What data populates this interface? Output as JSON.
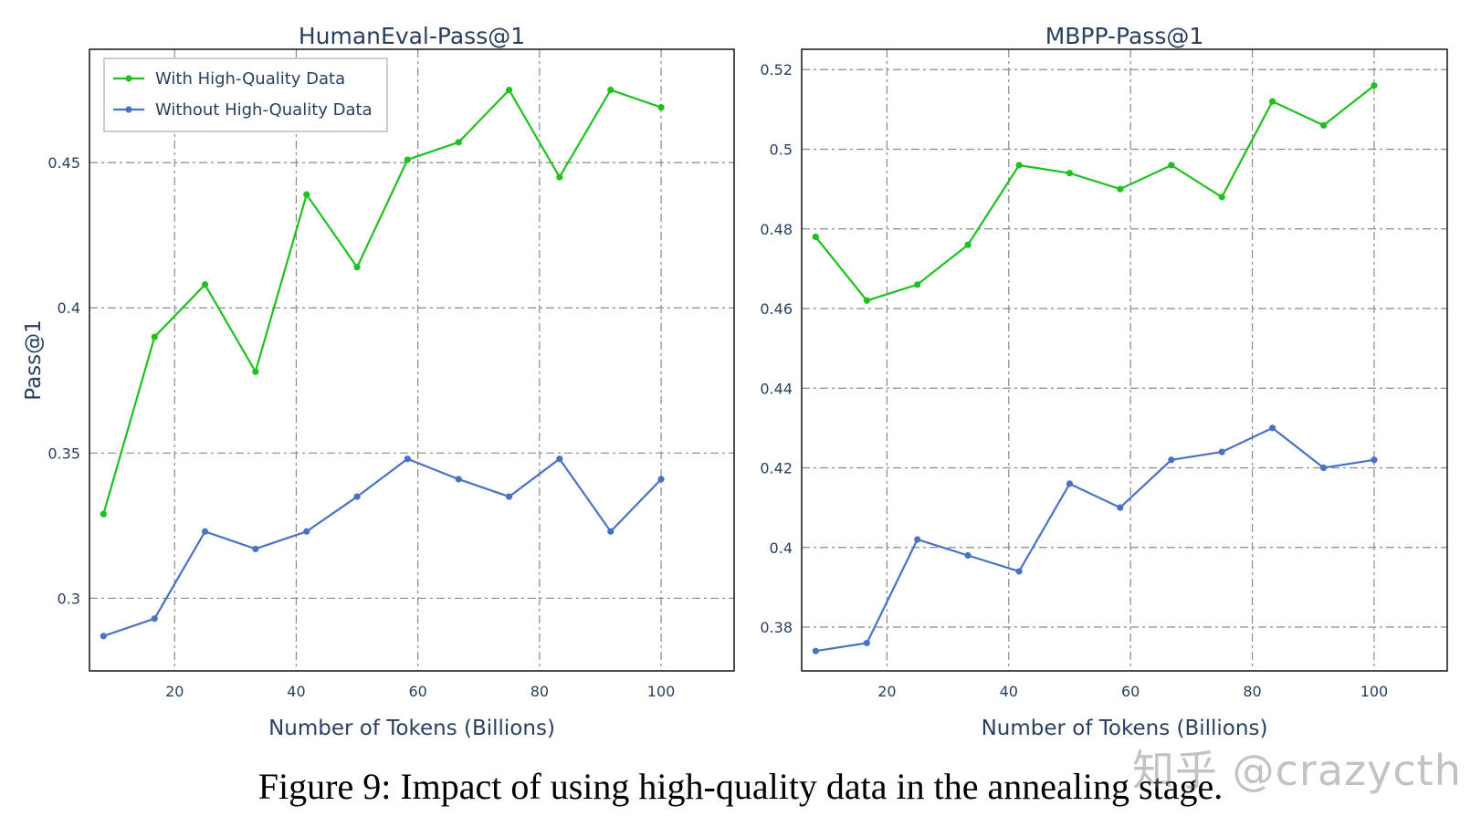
{
  "caption": "Figure 9: Impact of using high-quality data in the annealing stage.",
  "watermark": "知乎 @crazycth",
  "colors": {
    "with": "#1fc11f",
    "without": "#4a72c4",
    "grid": "#8a8a8a",
    "text": "#2a3f5f"
  },
  "chart_data": [
    {
      "type": "line",
      "title": "HumanEval-Pass@1",
      "xlabel": "Number of Tokens (Billions)",
      "ylabel": "Pass@1",
      "xlim": [
        6,
        112
      ],
      "ylim": [
        0.275,
        0.489
      ],
      "xticks": [
        20,
        40,
        60,
        80,
        100
      ],
      "xtick_labels": [
        "20",
        "40",
        "60",
        "80",
        "100"
      ],
      "yticks": [
        0.3,
        0.35,
        0.4,
        0.45
      ],
      "ytick_labels": [
        "0.3",
        "0.35",
        "0.4",
        "0.45"
      ],
      "grid": true,
      "legend_position": "top-left",
      "series": [
        {
          "name": "With High-Quality Data",
          "color": "#1fc11f",
          "x": [
            8.3,
            16.7,
            25,
            33.3,
            41.7,
            50,
            58.3,
            66.7,
            75,
            83.3,
            91.7,
            100
          ],
          "values": [
            0.329,
            0.39,
            0.408,
            0.378,
            0.439,
            0.414,
            0.451,
            0.457,
            0.475,
            0.445,
            0.475,
            0.469
          ]
        },
        {
          "name": "Without High-Quality Data",
          "color": "#4a72c4",
          "x": [
            8.3,
            16.7,
            25,
            33.3,
            41.7,
            50,
            58.3,
            66.7,
            75,
            83.3,
            91.7,
            100
          ],
          "values": [
            0.287,
            0.293,
            0.323,
            0.317,
            0.323,
            0.335,
            0.348,
            0.341,
            0.335,
            0.348,
            0.323,
            0.341
          ]
        }
      ]
    },
    {
      "type": "line",
      "title": "MBPP-Pass@1",
      "xlabel": "Number of Tokens (Billions)",
      "ylabel": "",
      "xlim": [
        6,
        112
      ],
      "ylim": [
        0.369,
        0.5251
      ],
      "xticks": [
        20,
        40,
        60,
        80,
        100
      ],
      "xtick_labels": [
        "20",
        "40",
        "60",
        "80",
        "100"
      ],
      "yticks": [
        0.38,
        0.4,
        0.42,
        0.44,
        0.46,
        0.48,
        0.5,
        0.52
      ],
      "ytick_labels": [
        "0.38",
        "0.4",
        "0.42",
        "0.44",
        "0.46",
        "0.48",
        "0.5",
        "0.52"
      ],
      "grid": true,
      "legend_position": "none",
      "series": [
        {
          "name": "With High-Quality Data",
          "color": "#1fc11f",
          "x": [
            8.3,
            16.7,
            25,
            33.3,
            41.7,
            50,
            58.3,
            66.7,
            75,
            83.3,
            91.7,
            100
          ],
          "values": [
            0.478,
            0.462,
            0.466,
            0.476,
            0.496,
            0.494,
            0.49,
            0.496,
            0.488,
            0.512,
            0.506,
            0.516
          ]
        },
        {
          "name": "Without High-Quality Data",
          "color": "#4a72c4",
          "x": [
            8.3,
            16.7,
            25,
            33.3,
            41.7,
            50,
            58.3,
            66.7,
            75,
            83.3,
            91.7,
            100
          ],
          "values": [
            0.374,
            0.376,
            0.402,
            0.398,
            0.394,
            0.416,
            0.41,
            0.422,
            0.424,
            0.43,
            0.42,
            0.422
          ]
        }
      ]
    }
  ]
}
